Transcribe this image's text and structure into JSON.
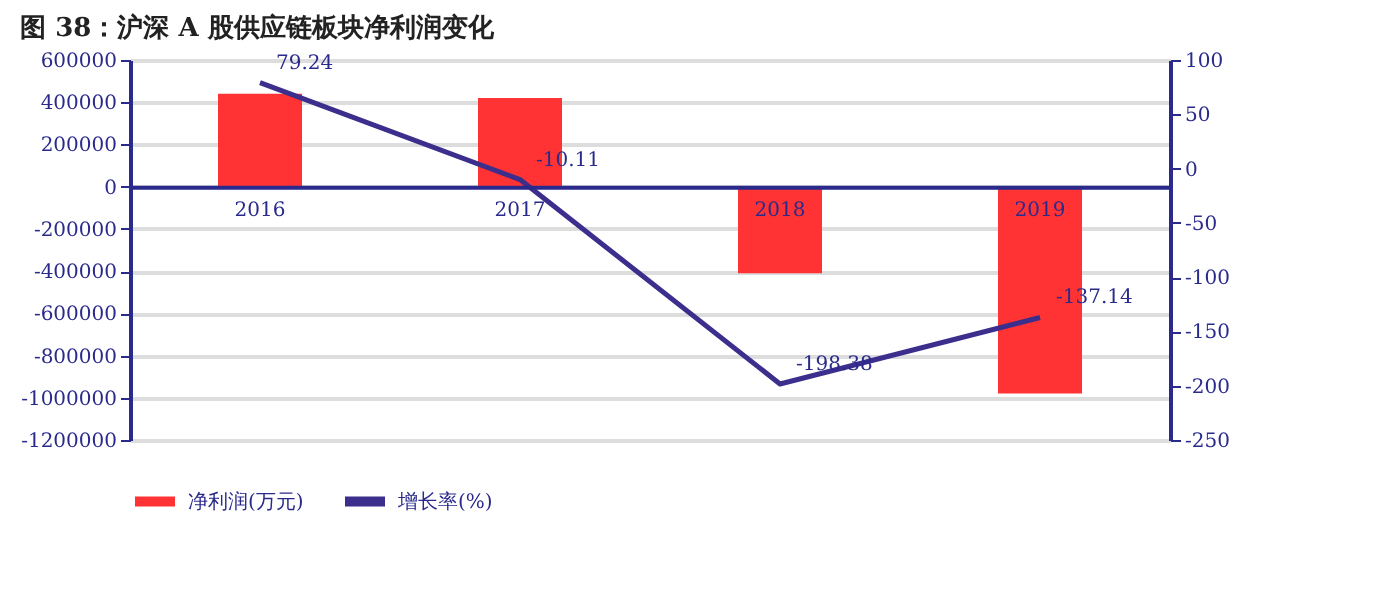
{
  "chart_data": {
    "type": "bar",
    "title": "图 38：沪深 A 股供应链板块净利润变化",
    "categories": [
      "2016",
      "2017",
      "2018",
      "2019"
    ],
    "series": [
      {
        "name": "净利润(万元)",
        "color": "#ff3333",
        "values": [
          440000,
          420000,
          -410000,
          -980000
        ]
      },
      {
        "name": "增长率(%)",
        "color": "#3b2e8c",
        "type": "line",
        "axis": "y2",
        "values": [
          79.24,
          -10.11,
          -198.38,
          -137.14
        ],
        "value_labels": [
          "79.24",
          "-10.11",
          "-198.38",
          "-137.14"
        ]
      }
    ],
    "ylim": [
      -1200000,
      600000
    ],
    "yticks": [
      -1200000,
      -1000000,
      -800000,
      -600000,
      -400000,
      -200000,
      0,
      200000,
      400000,
      600000
    ],
    "y2lim": [
      -250,
      100
    ],
    "y2ticks": [
      -250,
      -200,
      -150,
      -100,
      -50,
      0,
      50,
      100
    ],
    "grid": "y",
    "legend": "bottom"
  }
}
